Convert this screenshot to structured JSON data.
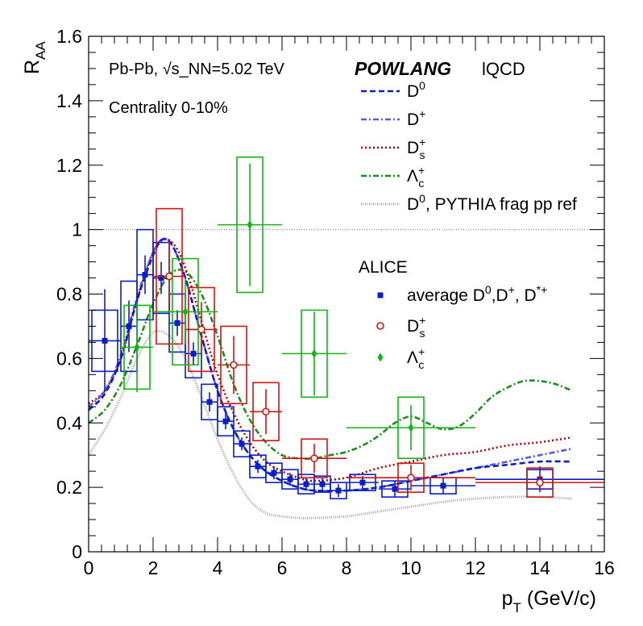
{
  "chart_data": {
    "type": "scatter",
    "xlabel": "p_T (GeV/c)",
    "ylabel": "R_AA",
    "xlim": [
      0,
      16
    ],
    "ylim": [
      0,
      1.6
    ],
    "x_ticks": [
      "0",
      "2",
      "4",
      "6",
      "8",
      "10",
      "12",
      "14",
      "16"
    ],
    "y_ticks": [
      "0",
      "0.2",
      "0.4",
      "0.6",
      "0.8",
      "1",
      "1.2",
      "1.4",
      "1.6"
    ],
    "x_tick_values": [
      0,
      2,
      4,
      6,
      8,
      10,
      12,
      14,
      16
    ],
    "y_tick_values": [
      0,
      0.2,
      0.4,
      0.6,
      0.8,
      1.0,
      1.2,
      1.4,
      1.6
    ],
    "reference_line": 1.0,
    "annotations": {
      "system": "Pb-Pb, √s_NN=5.02 TeV",
      "centrality": "Centrality 0-10%",
      "model_title": "POWLANG",
      "model_sub": "lQCD",
      "experiment": "ALICE"
    },
    "model_curves": [
      {
        "name": "D0",
        "label": "D",
        "sup": "0",
        "sub": "",
        "color": "#0a1ec8",
        "style": "dashed",
        "x": [
          0,
          0.5,
          1,
          1.5,
          2,
          2.3,
          2.6,
          3,
          3.5,
          4,
          4.5,
          5,
          5.5,
          6,
          6.5,
          7,
          8,
          9,
          10,
          11,
          12,
          13,
          14,
          15
        ],
        "y": [
          0.44,
          0.49,
          0.6,
          0.78,
          0.92,
          0.97,
          0.95,
          0.85,
          0.67,
          0.5,
          0.38,
          0.3,
          0.25,
          0.22,
          0.2,
          0.19,
          0.19,
          0.2,
          0.22,
          0.24,
          0.26,
          0.27,
          0.28,
          0.28
        ]
      },
      {
        "name": "D+",
        "label": "D",
        "sup": "+",
        "sub": "",
        "color": "#5a5aec",
        "style": "dashdot",
        "x": [
          0,
          0.5,
          1,
          1.5,
          2,
          2.3,
          2.6,
          3,
          3.5,
          4,
          4.5,
          5,
          5.5,
          6,
          6.5,
          7,
          8,
          9,
          10,
          11,
          12,
          13,
          14,
          15
        ],
        "y": [
          0.45,
          0.5,
          0.61,
          0.79,
          0.93,
          0.97,
          0.95,
          0.85,
          0.67,
          0.5,
          0.38,
          0.3,
          0.25,
          0.22,
          0.2,
          0.19,
          0.19,
          0.2,
          0.22,
          0.24,
          0.26,
          0.28,
          0.3,
          0.32
        ]
      },
      {
        "name": "Ds+",
        "label": "D",
        "sup": "+",
        "sub": "s",
        "color": "#b40000",
        "style": "dotted",
        "x": [
          0,
          0.5,
          1,
          1.5,
          2,
          2.4,
          2.8,
          3.2,
          3.6,
          4,
          4.5,
          5,
          5.5,
          6,
          6.5,
          7,
          8,
          9,
          10,
          11,
          12,
          13,
          14,
          15
        ],
        "y": [
          0.46,
          0.5,
          0.6,
          0.78,
          0.93,
          0.97,
          0.93,
          0.82,
          0.68,
          0.55,
          0.43,
          0.34,
          0.28,
          0.25,
          0.23,
          0.22,
          0.23,
          0.26,
          0.28,
          0.3,
          0.31,
          0.33,
          0.34,
          0.355
        ]
      },
      {
        "name": "Lc+",
        "label": "Λ",
        "sup": "+",
        "sub": "c",
        "color": "#1e8c1e",
        "style": "dashdot",
        "x": [
          0,
          0.5,
          1,
          1.5,
          2,
          2.5,
          3,
          3.5,
          4,
          4.5,
          5,
          5.5,
          6,
          6.5,
          7,
          7.5,
          8,
          8.5,
          9,
          9.5,
          10,
          10.5,
          11,
          11.5,
          12,
          12.5,
          13,
          13.5,
          14,
          14.5,
          15
        ],
        "y": [
          0.4,
          0.44,
          0.52,
          0.64,
          0.77,
          0.86,
          0.87,
          0.8,
          0.67,
          0.52,
          0.41,
          0.34,
          0.3,
          0.29,
          0.29,
          0.3,
          0.31,
          0.33,
          0.36,
          0.4,
          0.42,
          0.4,
          0.38,
          0.39,
          0.43,
          0.48,
          0.51,
          0.53,
          0.53,
          0.52,
          0.5
        ]
      },
      {
        "name": "D0, PYTHIA frag pp ref",
        "label": "D",
        "sup": "0",
        "sub": "",
        "suffix": ", PYTHIA frag pp ref",
        "color": "#a8a8a8",
        "style": "fine",
        "x": [
          0,
          0.5,
          1,
          1.5,
          2,
          2.5,
          3,
          3.5,
          4,
          4.5,
          5,
          5.5,
          6,
          6.5,
          7,
          8,
          9,
          10,
          11,
          12,
          13,
          14,
          15
        ],
        "y": [
          0.3,
          0.38,
          0.48,
          0.6,
          0.68,
          0.67,
          0.6,
          0.48,
          0.35,
          0.24,
          0.16,
          0.12,
          0.11,
          0.105,
          0.105,
          0.11,
          0.125,
          0.14,
          0.155,
          0.165,
          0.17,
          0.17,
          0.165
        ]
      }
    ],
    "series": [
      {
        "name": "average D0,D+, D*+",
        "color": "#0a1ec8",
        "marker": "square",
        "points": [
          {
            "x": 0.5,
            "y": 0.655,
            "xerr": 0.5,
            "yerr": 0.16,
            "sys": 0.095
          },
          {
            "x": 1.25,
            "y": 0.7,
            "xerr": 0.25,
            "yerr": 0.08,
            "sys": 0.14
          },
          {
            "x": 1.75,
            "y": 0.86,
            "xerr": 0.25,
            "yerr": 0.06,
            "sys": 0.14
          },
          {
            "x": 2.25,
            "y": 0.85,
            "xerr": 0.25,
            "yerr": 0.05,
            "sys": 0.11
          },
          {
            "x": 2.75,
            "y": 0.71,
            "xerr": 0.25,
            "yerr": 0.04,
            "sys": 0.09
          },
          {
            "x": 3.25,
            "y": 0.615,
            "xerr": 0.25,
            "yerr": 0.035,
            "sys": 0.075
          },
          {
            "x": 3.75,
            "y": 0.465,
            "xerr": 0.25,
            "yerr": 0.03,
            "sys": 0.055
          },
          {
            "x": 4.25,
            "y": 0.405,
            "xerr": 0.25,
            "yerr": 0.025,
            "sys": 0.045
          },
          {
            "x": 4.75,
            "y": 0.335,
            "xerr": 0.25,
            "yerr": 0.02,
            "sys": 0.04
          },
          {
            "x": 5.25,
            "y": 0.265,
            "xerr": 0.25,
            "yerr": 0.02,
            "sys": 0.035
          },
          {
            "x": 5.75,
            "y": 0.245,
            "xerr": 0.25,
            "yerr": 0.02,
            "sys": 0.03
          },
          {
            "x": 6.25,
            "y": 0.225,
            "xerr": 0.25,
            "yerr": 0.02,
            "sys": 0.03
          },
          {
            "x": 6.75,
            "y": 0.21,
            "xerr": 0.25,
            "yerr": 0.02,
            "sys": 0.03
          },
          {
            "x": 7.25,
            "y": 0.21,
            "xerr": 0.25,
            "yerr": 0.02,
            "sys": 0.025
          },
          {
            "x": 7.75,
            "y": 0.19,
            "xerr": 0.25,
            "yerr": 0.02,
            "sys": 0.025
          },
          {
            "x": 8.5,
            "y": 0.215,
            "xerr": 0.5,
            "yerr": 0.02,
            "sys": 0.025
          },
          {
            "x": 9.5,
            "y": 0.195,
            "xerr": 0.5,
            "yerr": 0.025,
            "sys": 0.025
          },
          {
            "x": 11.0,
            "y": 0.205,
            "xerr": 1.0,
            "yerr": 0.025,
            "sys": 0.025
          },
          {
            "x": 14.0,
            "y": 0.225,
            "xerr": 2.0,
            "yerr": 0.04,
            "sys": 0.03
          }
        ]
      },
      {
        "name": "Ds+",
        "color": "#d21414",
        "marker": "open-circle",
        "points": [
          {
            "x": 2.5,
            "y": 0.855,
            "xerr": 0.5,
            "yerr": 0.11,
            "sys": 0.21
          },
          {
            "x": 3.5,
            "y": 0.69,
            "xerr": 0.5,
            "yerr": 0.085,
            "sys": 0.13
          },
          {
            "x": 4.5,
            "y": 0.58,
            "xerr": 0.5,
            "yerr": 0.09,
            "sys": 0.12
          },
          {
            "x": 5.5,
            "y": 0.435,
            "xerr": 0.5,
            "yerr": 0.07,
            "sys": 0.09
          },
          {
            "x": 7.0,
            "y": 0.29,
            "xerr": 1.0,
            "yerr": 0.045,
            "sys": 0.06
          },
          {
            "x": 10.0,
            "y": 0.23,
            "xerr": 2.0,
            "yerr": 0.04,
            "sys": 0.045
          },
          {
            "x": 14.0,
            "y": 0.215,
            "xerr": 2.0,
            "yerr": 0.03,
            "sys": 0.045
          }
        ]
      },
      {
        "name": "Lc+",
        "color": "#14b414",
        "marker": "diamond",
        "points": [
          {
            "x": 1.5,
            "y": 0.635,
            "xerr": 0.5,
            "yerr": 0.14,
            "sys": 0.13
          },
          {
            "x": 3.0,
            "y": 0.745,
            "xerr": 1.0,
            "yerr": 0.1,
            "sys": 0.165
          },
          {
            "x": 5.0,
            "y": 1.015,
            "xerr": 1.0,
            "yerr": 0.19,
            "sys": 0.21
          },
          {
            "x": 7.0,
            "y": 0.615,
            "xerr": 1.0,
            "yerr": 0.13,
            "sys": 0.135
          },
          {
            "x": 10.0,
            "y": 0.385,
            "xerr": 2.0,
            "yerr": 0.07,
            "sys": 0.095
          }
        ]
      }
    ],
    "legend_alice_entries": [
      {
        "label": "average D",
        "sup": "0",
        "suffix": ",D",
        "sup2": "+",
        "suffix2": ", D",
        "sup3": "*+"
      },
      {
        "label": "D",
        "sup": "+",
        "sub": "s"
      },
      {
        "label": "Λ",
        "sup": "+",
        "sub": "c"
      }
    ]
  }
}
